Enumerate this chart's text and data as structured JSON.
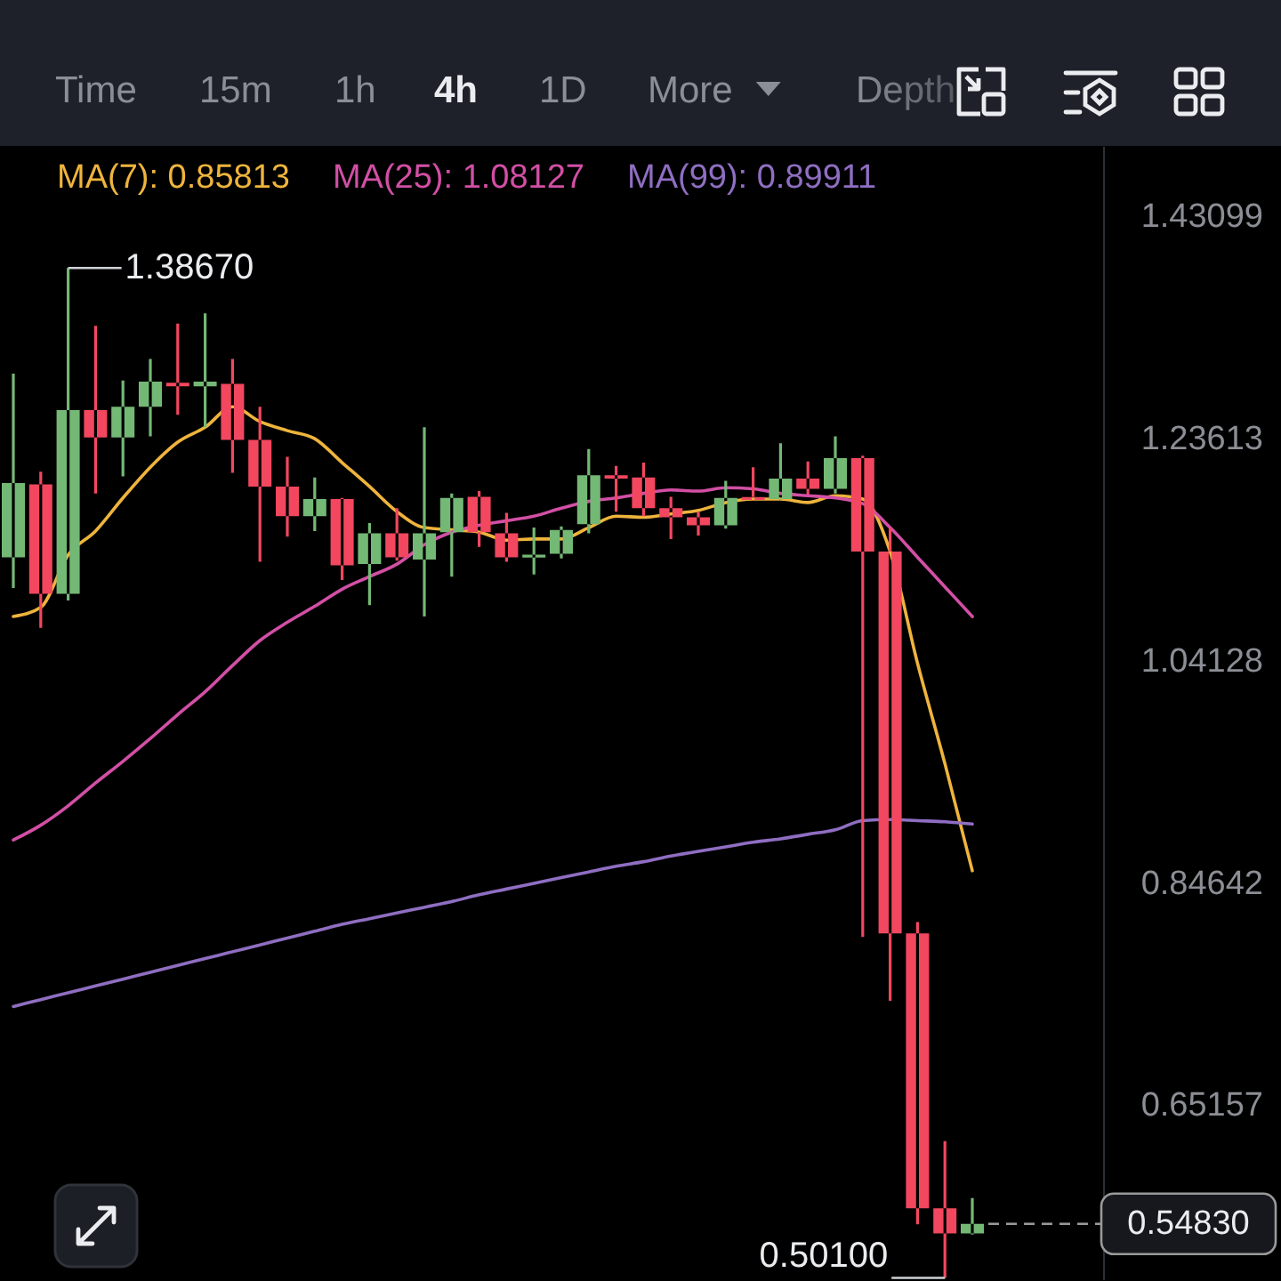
{
  "chart_data": {
    "type": "candlestick",
    "categories": [
      null,
      null,
      null,
      null,
      null,
      null,
      null,
      null,
      null,
      null,
      null,
      null,
      null,
      null,
      null,
      null,
      null,
      null,
      null,
      null,
      null,
      null,
      null,
      null,
      null,
      null,
      null,
      null,
      null,
      null,
      null,
      null,
      null,
      null,
      null,
      null
    ],
    "ohlc": [
      [
        1.133,
        1.294,
        1.106,
        1.198
      ],
      [
        1.197,
        1.208,
        1.071,
        1.101
      ],
      [
        1.101,
        1.3867,
        1.095,
        1.262
      ],
      [
        1.262,
        1.336,
        1.189,
        1.238
      ],
      [
        1.238,
        1.288,
        1.204,
        1.265
      ],
      [
        1.265,
        1.307,
        1.239,
        1.287
      ],
      [
        1.286,
        1.338,
        1.258,
        1.283
      ],
      [
        1.283,
        1.347,
        1.247,
        1.287
      ],
      [
        1.285,
        1.307,
        1.207,
        1.236
      ],
      [
        1.236,
        1.265,
        1.129,
        1.195
      ],
      [
        1.195,
        1.221,
        1.151,
        1.169
      ],
      [
        1.169,
        1.203,
        1.156,
        1.184
      ],
      [
        1.184,
        1.185,
        1.113,
        1.126
      ],
      [
        1.127,
        1.163,
        1.091,
        1.154
      ],
      [
        1.154,
        1.176,
        1.13,
        1.133
      ],
      [
        1.131,
        1.247,
        1.081,
        1.154
      ],
      [
        1.155,
        1.189,
        1.116,
        1.185
      ],
      [
        1.186,
        1.191,
        1.142,
        1.155
      ],
      [
        1.154,
        1.172,
        1.129,
        1.133
      ],
      [
        1.133,
        1.159,
        1.118,
        1.135
      ],
      [
        1.136,
        1.16,
        1.132,
        1.157
      ],
      [
        1.162,
        1.228,
        1.154,
        1.205
      ],
      [
        1.205,
        1.213,
        1.173,
        1.202
      ],
      [
        1.203,
        1.216,
        1.169,
        1.176
      ],
      [
        1.176,
        1.186,
        1.149,
        1.168
      ],
      [
        1.168,
        1.173,
        1.152,
        1.161
      ],
      [
        1.161,
        1.2,
        1.158,
        1.185
      ],
      [
        1.185,
        1.212,
        1.183,
        1.184
      ],
      [
        1.184,
        1.233,
        1.183,
        1.202
      ],
      [
        1.202,
        1.217,
        1.188,
        1.193
      ],
      [
        1.193,
        1.239,
        1.189,
        1.22
      ],
      [
        1.22,
        1.222,
        0.8,
        1.138
      ],
      [
        1.138,
        1.159,
        0.744,
        0.803
      ],
      [
        0.803,
        0.813,
        0.548,
        0.562
      ],
      [
        0.562,
        0.621,
        0.501,
        0.54
      ],
      [
        0.54,
        0.571,
        0.539,
        0.5483
      ]
    ],
    "colors": [
      "#74b876",
      "#f2475f",
      "#74b876",
      "#f2475f",
      "#74b876",
      "#74b876",
      "#f2475f",
      "#74b876",
      "#f2475f",
      "#f2475f",
      "#f2475f",
      "#74b876",
      "#f2475f",
      "#74b876",
      "#f2475f",
      "#74b876",
      "#74b876",
      "#f2475f",
      "#f2475f",
      "#74b876",
      "#74b876",
      "#74b876",
      "#f2475f",
      "#f2475f",
      "#f2475f",
      "#f2475f",
      "#74b876",
      "#f2475f",
      "#74b876",
      "#f2475f",
      "#74b876",
      "#f2475f",
      "#f2475f",
      "#f2475f",
      "#f2475f",
      "#74b876"
    ],
    "series": [
      {
        "name": "MA(7): 0.85813",
        "type": "line",
        "color": "#eeb43c",
        "values": [
          1.081,
          1.089,
          1.135,
          1.156,
          1.185,
          1.212,
          1.234,
          1.247,
          1.265,
          1.252,
          1.244,
          1.237,
          1.216,
          1.195,
          1.173,
          1.159,
          1.157,
          1.155,
          1.148,
          1.149,
          1.149,
          1.159,
          1.169,
          1.168,
          1.171,
          1.174,
          1.181,
          1.184,
          1.184,
          1.181,
          1.187,
          1.184,
          1.138,
          1.04,
          0.952,
          0.858
        ]
      },
      {
        "name": "MA(25): 1.08127",
        "type": "line",
        "color": "#d24fa5",
        "values": [
          0.885,
          0.898,
          0.915,
          0.935,
          0.954,
          0.974,
          0.995,
          1.015,
          1.038,
          1.06,
          1.076,
          1.09,
          1.105,
          1.116,
          1.127,
          1.144,
          1.155,
          1.161,
          1.165,
          1.169,
          1.176,
          1.182,
          1.185,
          1.189,
          1.192,
          1.191,
          1.194,
          1.193,
          1.189,
          1.187,
          1.185,
          1.18,
          1.159,
          1.133,
          1.107,
          1.081
        ]
      },
      {
        "name": "MA(99): 0.89911",
        "type": "line",
        "color": "#8f6ec2",
        "values": [
          0.739,
          0.745,
          0.751,
          0.757,
          0.763,
          0.769,
          0.775,
          0.781,
          0.787,
          0.793,
          0.799,
          0.805,
          0.811,
          0.816,
          0.821,
          0.826,
          0.831,
          0.837,
          0.842,
          0.847,
          0.852,
          0.857,
          0.862,
          0.866,
          0.871,
          0.875,
          0.879,
          0.883,
          0.886,
          0.89,
          0.894,
          0.902,
          0.903,
          0.902,
          0.901,
          0.899
        ]
      }
    ],
    "ylim": [
      0.499,
      1.493
    ],
    "yticks": [
      0.65157,
      0.84642,
      1.04128,
      1.23613,
      1.43099
    ],
    "tick_labels": "y",
    "legend": "top",
    "ref_lines": [
      {
        "axis": "y",
        "value": 0.5483,
        "label": "0.54830",
        "color": "#9a9a9a",
        "line_style": "dashed"
      }
    ],
    "annotations": [
      "Time",
      "15m",
      "1h",
      "4h",
      "1D",
      "More",
      "Depth",
      "1.38670",
      "0.50100"
    ]
  }
}
